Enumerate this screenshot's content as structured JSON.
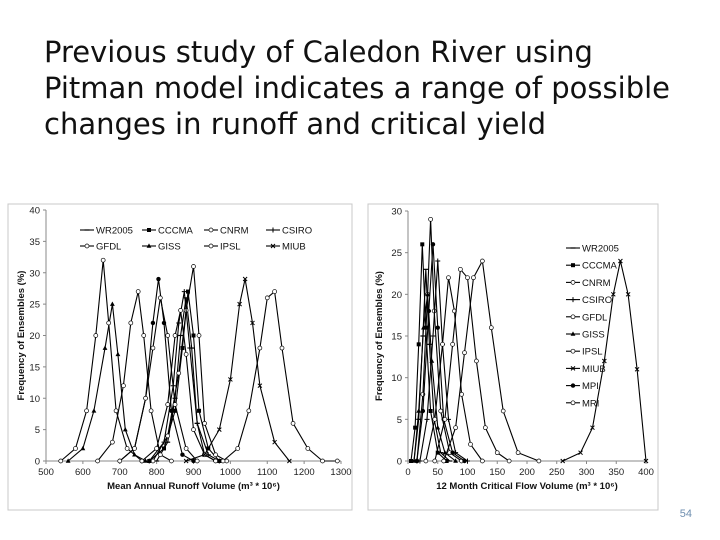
{
  "slide": {
    "title": "Previous study of Caledon River using Pitman model indicates a range of possible changes in runoff and critical yield",
    "page_number": "54"
  },
  "chart_data": [
    {
      "type": "line",
      "xlabel": "Mean Annual Runoff Volume (m³ * 10⁶)",
      "ylabel": "Frequency of Ensembles (%)",
      "xlim": [
        500,
        1300
      ],
      "ylim": [
        0,
        40
      ],
      "xticks": [
        500,
        600,
        700,
        800,
        900,
        1000,
        1100,
        1200,
        1300
      ],
      "yticks": [
        0,
        5,
        10,
        15,
        20,
        25,
        30,
        35,
        40
      ],
      "legend_position": "top",
      "grid": false,
      "series": [
        {
          "name": "WR2005",
          "marker": "dash",
          "points": [
            [
              800,
              0
            ],
            [
              830,
              3
            ],
            [
              850,
              10
            ],
            [
              865,
              20
            ],
            [
              880,
              26
            ],
            [
              895,
              18
            ],
            [
              910,
              6
            ],
            [
              930,
              1
            ],
            [
              960,
              0
            ]
          ]
        },
        {
          "name": "CCCMA",
          "marker": "square",
          "points": [
            [
              780,
              0
            ],
            [
              820,
              2
            ],
            [
              850,
              8
            ],
            [
              870,
              18
            ],
            [
              885,
              27
            ],
            [
              900,
              20
            ],
            [
              915,
              8
            ],
            [
              940,
              2
            ],
            [
              970,
              0
            ]
          ]
        },
        {
          "name": "CNRM",
          "marker": "open",
          "points": [
            [
              790,
              0
            ],
            [
              830,
              4
            ],
            [
              860,
              14
            ],
            [
              880,
              24
            ],
            [
              900,
              31
            ],
            [
              915,
              20
            ],
            [
              930,
              6
            ],
            [
              960,
              1
            ],
            [
              990,
              0
            ]
          ]
        },
        {
          "name": "CSIRO",
          "marker": "plus",
          "points": [
            [
              780,
              0
            ],
            [
              820,
              3
            ],
            [
              845,
              12
            ],
            [
              860,
              22
            ],
            [
              875,
              27
            ],
            [
              890,
              18
            ],
            [
              910,
              6
            ],
            [
              940,
              1
            ],
            [
              970,
              0
            ]
          ]
        },
        {
          "name": "GFDL",
          "marker": "open",
          "points": [
            [
              760,
              0
            ],
            [
              800,
              2
            ],
            [
              830,
              9
            ],
            [
              850,
              20
            ],
            [
              865,
              24
            ],
            [
              880,
              17
            ],
            [
              900,
              5
            ],
            [
              930,
              1
            ],
            [
              960,
              0
            ]
          ]
        },
        {
          "name": "GISS",
          "marker": "triangle",
          "points": [
            [
              560,
              0
            ],
            [
              600,
              2
            ],
            [
              630,
              8
            ],
            [
              660,
              18
            ],
            [
              680,
              25
            ],
            [
              695,
              17
            ],
            [
              715,
              5
            ],
            [
              740,
              1
            ],
            [
              770,
              0
            ]
          ]
        },
        {
          "name": "IPSL",
          "marker": "open",
          "points": [
            [
              540,
              0
            ],
            [
              580,
              2
            ],
            [
              610,
              8
            ],
            [
              635,
              20
            ],
            [
              655,
              32
            ],
            [
              670,
              22
            ],
            [
              690,
              8
            ],
            [
              720,
              2
            ],
            [
              760,
              0
            ]
          ]
        },
        {
          "name": "MIUB",
          "marker": "cross",
          "points": [
            [
              880,
              0
            ],
            [
              930,
              1
            ],
            [
              970,
              5
            ],
            [
              1000,
              13
            ],
            [
              1025,
              25
            ],
            [
              1040,
              29
            ],
            [
              1060,
              22
            ],
            [
              1080,
              12
            ],
            [
              1120,
              3
            ],
            [
              1160,
              0
            ]
          ]
        },
        {
          "name": "",
          "marker": "dot",
          "points": [
            [
              700,
              0
            ],
            [
              740,
              2
            ],
            [
              770,
              10
            ],
            [
              790,
              22
            ],
            [
              805,
              29
            ],
            [
              820,
              22
            ],
            [
              840,
              8
            ],
            [
              870,
              1
            ],
            [
              900,
              0
            ]
          ]
        },
        {
          "name": "",
          "marker": "open",
          "points": [
            [
              640,
              0
            ],
            [
              680,
              3
            ],
            [
              710,
              12
            ],
            [
              730,
              22
            ],
            [
              750,
              27
            ],
            [
              765,
              20
            ],
            [
              785,
              8
            ],
            [
              810,
              1
            ],
            [
              840,
              0
            ]
          ]
        },
        {
          "name": "",
          "marker": "open",
          "points": [
            [
              980,
              0
            ],
            [
              1020,
              2
            ],
            [
              1050,
              8
            ],
            [
              1080,
              18
            ],
            [
              1100,
              26
            ],
            [
              1120,
              27
            ],
            [
              1140,
              18
            ],
            [
              1170,
              6
            ],
            [
              1210,
              2
            ],
            [
              1250,
              0
            ],
            [
              1290,
              0
            ]
          ]
        },
        {
          "name": "",
          "marker": "open",
          "points": [
            [
              700,
              0
            ],
            [
              740,
              2
            ],
            [
              770,
              10
            ],
            [
              790,
              18
            ],
            [
              810,
              26
            ],
            [
              830,
              20
            ],
            [
              850,
              9
            ],
            [
              880,
              2
            ],
            [
              910,
              0
            ]
          ]
        }
      ]
    },
    {
      "type": "line",
      "xlabel": "12 Month Critical Flow Volume (m³ * 10⁶)",
      "ylabel": "Frequency of Ensembles (%)",
      "xlim": [
        0,
        400
      ],
      "ylim": [
        0,
        30
      ],
      "xticks": [
        0,
        50,
        100,
        150,
        200,
        250,
        300,
        350,
        400
      ],
      "yticks": [
        0,
        5,
        10,
        15,
        20,
        25,
        30
      ],
      "legend_position": "right",
      "grid": false,
      "series": [
        {
          "name": "WR2005",
          "marker": "dash",
          "points": [
            [
              10,
              0
            ],
            [
              18,
              5
            ],
            [
              25,
              15
            ],
            [
              30,
              23
            ],
            [
              36,
              14
            ],
            [
              44,
              5
            ],
            [
              55,
              1
            ],
            [
              70,
              0
            ]
          ]
        },
        {
          "name": "CCCMA",
          "marker": "square",
          "points": [
            [
              5,
              0
            ],
            [
              12,
              4
            ],
            [
              18,
              14
            ],
            [
              24,
              26
            ],
            [
              30,
              16
            ],
            [
              38,
              6
            ],
            [
              50,
              1
            ],
            [
              65,
              0
            ]
          ]
        },
        {
          "name": "CNRM",
          "marker": "open",
          "points": [
            [
              15,
              0
            ],
            [
              25,
              8
            ],
            [
              33,
              20
            ],
            [
              38,
              29
            ],
            [
              44,
              18
            ],
            [
              55,
              6
            ],
            [
              70,
              1
            ],
            [
              90,
              0
            ]
          ]
        },
        {
          "name": "CSIRO",
          "marker": "plus",
          "points": [
            [
              20,
              0
            ],
            [
              32,
              5
            ],
            [
              42,
              15
            ],
            [
              50,
              24
            ],
            [
              58,
              14
            ],
            [
              68,
              5
            ],
            [
              80,
              1
            ],
            [
              100,
              0
            ]
          ]
        },
        {
          "name": "GFDL",
          "marker": "open",
          "points": [
            [
              30,
              0
            ],
            [
              45,
              5
            ],
            [
              58,
              14
            ],
            [
              68,
              22
            ],
            [
              78,
              18
            ],
            [
              90,
              8
            ],
            [
              105,
              2
            ],
            [
              125,
              0
            ]
          ]
        },
        {
          "name": "GISS",
          "marker": "triangle",
          "points": [
            [
              10,
              0
            ],
            [
              18,
              6
            ],
            [
              26,
              16
            ],
            [
              33,
              20
            ],
            [
              40,
              12
            ],
            [
              50,
              4
            ],
            [
              62,
              1
            ],
            [
              80,
              0
            ]
          ]
        },
        {
          "name": "IPSL",
          "marker": "open",
          "points": [
            [
              60,
              0
            ],
            [
              80,
              4
            ],
            [
              95,
              13
            ],
            [
              110,
              22
            ],
            [
              125,
              24
            ],
            [
              140,
              16
            ],
            [
              160,
              6
            ],
            [
              185,
              1
            ],
            [
              220,
              0
            ]
          ]
        },
        {
          "name": "MIUB",
          "marker": "cross",
          "points": [
            [
              260,
              0
            ],
            [
              290,
              1
            ],
            [
              310,
              4
            ],
            [
              330,
              12
            ],
            [
              345,
              20
            ],
            [
              357,
              24
            ],
            [
              370,
              20
            ],
            [
              385,
              11
            ],
            [
              400,
              0
            ]
          ]
        },
        {
          "name": "MPI",
          "marker": "dot",
          "points": [
            [
              15,
              0
            ],
            [
              25,
              6
            ],
            [
              35,
              18
            ],
            [
              42,
              26
            ],
            [
              50,
              16
            ],
            [
              60,
              5
            ],
            [
              75,
              1
            ],
            [
              95,
              0
            ]
          ]
        },
        {
          "name": "MRI",
          "marker": "open",
          "points": [
            [
              45,
              0
            ],
            [
              62,
              5
            ],
            [
              75,
              14
            ],
            [
              88,
              23
            ],
            [
              100,
              22
            ],
            [
              115,
              12
            ],
            [
              130,
              4
            ],
            [
              150,
              1
            ],
            [
              170,
              0
            ]
          ]
        }
      ]
    }
  ]
}
